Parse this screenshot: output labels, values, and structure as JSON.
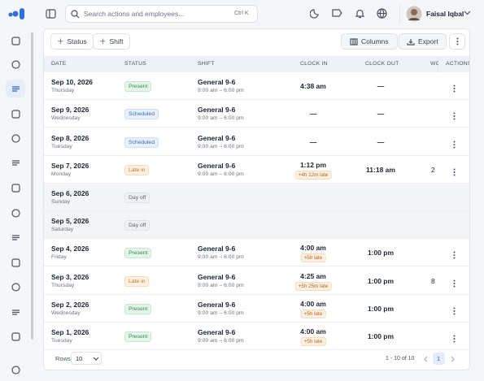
{
  "topbar": {
    "search_placeholder": "Search actions and employees...",
    "shortcut": "Ctrl K",
    "user_name": "Faisal Iqbal"
  },
  "toolbar": {
    "add_status": "Status",
    "add_shift": "Shift",
    "columns": "Columns",
    "export": "Export"
  },
  "badge_colors": {
    "Present": {
      "bg": "#e6f5ea",
      "fg": "#2e8a4a",
      "border": "#c6e8d0"
    },
    "Scheduled": {
      "bg": "#e8f0fb",
      "fg": "#3c6db0",
      "border": "#cfdff5"
    },
    "Late in": {
      "bg": "#fdf0e2",
      "fg": "#c2731c",
      "border": "#f6dcbd"
    },
    "Day off": {
      "bg": "#eef0f3",
      "fg": "#5b6270",
      "border": "#dde1e6"
    }
  },
  "table": {
    "columns": [
      "DATE",
      "STATUS",
      "SHIFT",
      "CLOCK IN",
      "CLOCK OUT",
      "WO",
      "ACTIONS"
    ],
    "rows": [
      {
        "date": "Sep 10, 2026",
        "weekday": "Thursday",
        "status": "Present",
        "shift": "General 9-6",
        "shift_time": "9:00 am – 6:00 pm",
        "clock_in": "4:38 am",
        "clock_out": "—"
      },
      {
        "date": "Sep 9, 2026",
        "weekday": "Wednesday",
        "status": "Scheduled",
        "shift": "General 9-6",
        "shift_time": "9:00 am – 6:00 pm",
        "clock_in": "—",
        "clock_out": "—"
      },
      {
        "date": "Sep 8, 2026",
        "weekday": "Tuesday",
        "status": "Scheduled",
        "shift": "General 9-6",
        "shift_time": "9:00 am – 6:00 pm",
        "clock_in": "—",
        "clock_out": "—"
      },
      {
        "date": "Sep 7, 2026",
        "weekday": "Monday",
        "status": "Late in",
        "shift": "General 9-6",
        "shift_time": "9:00 am – 6:00 pm",
        "clock_in": "1:12 pm",
        "late_note": "+4h 12m late",
        "clock_out": "11:18 am",
        "work": "2"
      },
      {
        "date": "Sep 6, 2026",
        "weekday": "Sunday",
        "status": "Day off"
      },
      {
        "date": "Sep 5, 2026",
        "weekday": "Saturday",
        "status": "Day off"
      },
      {
        "date": "Sep 4, 2026",
        "weekday": "Friday",
        "status": "Present",
        "shift": "General 9-6",
        "shift_time": "9:00 am – 6:00 pm",
        "clock_in": "4:00 am",
        "late_note": "+5h late",
        "clock_out": "1:00 pm"
      },
      {
        "date": "Sep 3, 2026",
        "weekday": "Thursday",
        "status": "Late in",
        "shift": "General 9-6",
        "shift_time": "9:00 am – 6:00 pm",
        "clock_in": "4:25 am",
        "late_note": "+5h 25m late",
        "clock_out": "1:00 pm",
        "work": "8"
      },
      {
        "date": "Sep 2, 2026",
        "weekday": "Wednesday",
        "status": "Present",
        "shift": "General 9-6",
        "shift_time": "9:00 am – 6:00 pm",
        "clock_in": "4:00 am",
        "late_note": "+5h late",
        "clock_out": "1:00 pm"
      },
      {
        "date": "Sep 1, 2026",
        "weekday": "Tuesday",
        "status": "Present",
        "shift": "General 9-6",
        "shift_time": "9:00 am – 6:00 pm",
        "clock_in": "4:00 am",
        "late_note": "+5h late",
        "clock_out": "1:00 pm"
      }
    ]
  },
  "footer": {
    "rows_label": "Rows",
    "rows_value": "10",
    "range": "1 - 10 of 10",
    "page": "1"
  }
}
